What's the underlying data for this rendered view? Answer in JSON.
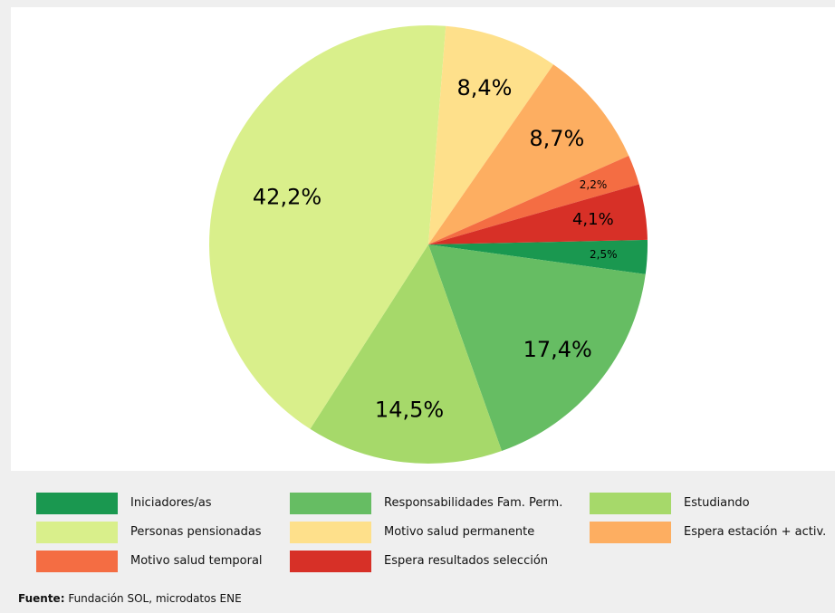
{
  "chart_data": {
    "type": "pie",
    "title": "",
    "slices": [
      {
        "label": "Iniciadores/as",
        "value": 2.5,
        "label_text": "2,5%",
        "color": "#1a9850"
      },
      {
        "label": "Responsabilidades Fam. Perm.",
        "value": 17.4,
        "label_text": "17,4%",
        "color": "#66bd63"
      },
      {
        "label": "Estudiando",
        "value": 14.5,
        "label_text": "14,5%",
        "color": "#a6d96a"
      },
      {
        "label": "Personas pensionadas",
        "value": 42.2,
        "label_text": "42,2%",
        "color": "#d9ef8b"
      },
      {
        "label": "Motivo salud permanente",
        "value": 8.4,
        "label_text": "8,4%",
        "color": "#fee08b"
      },
      {
        "label": "Espera estación + activ.",
        "value": 8.7,
        "label_text": "8,7%",
        "color": "#fdae61"
      },
      {
        "label": "Motivo salud temporal",
        "value": 2.2,
        "label_text": "2,2%",
        "color": "#f46d43"
      },
      {
        "label": "Espera resultados selección",
        "value": 4.1,
        "label_text": "4,1%",
        "color": "#d73027"
      }
    ],
    "legend_position": "bottom",
    "legend": [
      {
        "label": "Iniciadores/as",
        "color": "#1a9850"
      },
      {
        "label": "Responsabilidades Fam. Perm.",
        "color": "#66bd63"
      },
      {
        "label": "Estudiando",
        "color": "#a6d96a"
      },
      {
        "label": "Personas pensionadas",
        "color": "#d9ef8b"
      },
      {
        "label": "Motivo salud permanente",
        "color": "#fee08b"
      },
      {
        "label": "Espera estación + activ.",
        "color": "#fdae61"
      },
      {
        "label": "Motivo salud temporal",
        "color": "#f46d43"
      },
      {
        "label": "Espera resultados selección",
        "color": "#d73027"
      }
    ]
  },
  "source": {
    "label": "Fuente:",
    "text": "Fundación SOL, microdatos ENE"
  }
}
